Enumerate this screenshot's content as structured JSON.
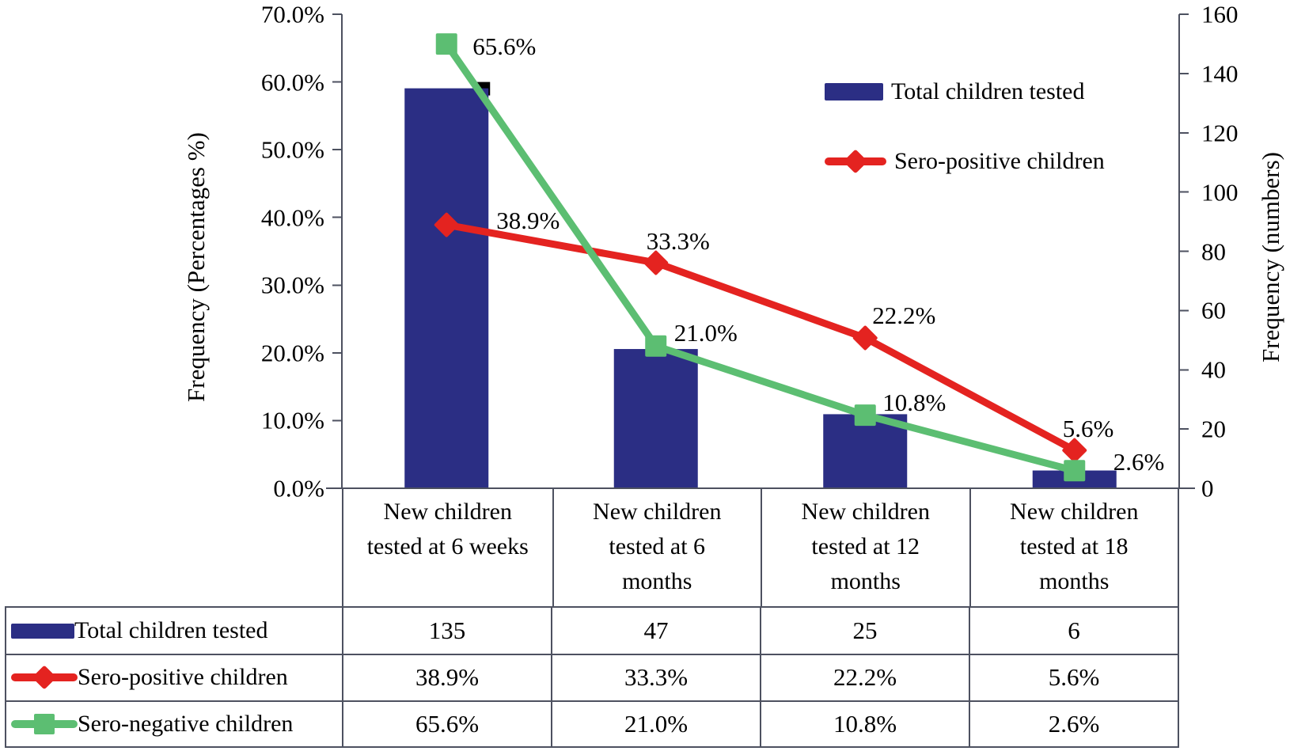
{
  "chart_data": {
    "type": "combo-bar-line",
    "categories": [
      "New children tested at 6 weeks",
      "New children tested at 6 months",
      "New children tested at 12 months",
      "New children tested at 18 months"
    ],
    "left_axis": {
      "label": "Frequency (Percentages %)",
      "ticks": [
        "0.0%",
        "10.0%",
        "20.0%",
        "30.0%",
        "40.0%",
        "50.0%",
        "60.0%",
        "70.0%"
      ],
      "min": 0,
      "max": 70,
      "grid": false
    },
    "right_axis": {
      "label": "Frequency (numbers)",
      "ticks": [
        "0",
        "20",
        "40",
        "60",
        "80",
        "100",
        "120",
        "140",
        "160"
      ],
      "min": 0,
      "max": 160
    },
    "series": [
      {
        "name": "Total children tested",
        "chart": "bar",
        "axis": "right",
        "color": "#2b2e84",
        "marker": "none",
        "values": [
          135,
          47,
          25,
          6
        ],
        "display": [
          "135",
          "47",
          "25",
          "6"
        ]
      },
      {
        "name": "Sero-positive children",
        "chart": "line",
        "axis": "left",
        "color": "#e42320",
        "marker": "diamond",
        "values": [
          38.9,
          33.3,
          22.2,
          5.6
        ],
        "display": [
          "38.9%",
          "33.3%",
          "22.2%",
          "5.6%"
        ]
      },
      {
        "name": "Sero-negative children",
        "chart": "line",
        "axis": "left",
        "color": "#5cbe72",
        "marker": "square",
        "values": [
          65.6,
          21.0,
          10.8,
          2.6
        ],
        "display": [
          "65.6%",
          "21.0%",
          "10.8%",
          "2.6%"
        ]
      }
    ],
    "legend": {
      "position": "top-right",
      "entries": [
        "Total children tested",
        "Sero-positive children"
      ]
    },
    "table": {
      "row_labels": [
        "Total children tested",
        "Sero-positive children",
        "Sero-negative children"
      ],
      "rows": [
        [
          "135",
          "47",
          "25",
          "6"
        ],
        [
          "38.9%",
          "33.3%",
          "22.2%",
          "5.6%"
        ],
        [
          "65.6%",
          "21.0%",
          "10.8%",
          "2.6%"
        ]
      ]
    }
  },
  "colors": {
    "bar": "#2b2e84",
    "sero_positive": "#e42320",
    "sero_negative": "#5cbe72",
    "axis": "#4d5160",
    "bar_shadow": "#000000",
    "background": "#ffffff"
  }
}
